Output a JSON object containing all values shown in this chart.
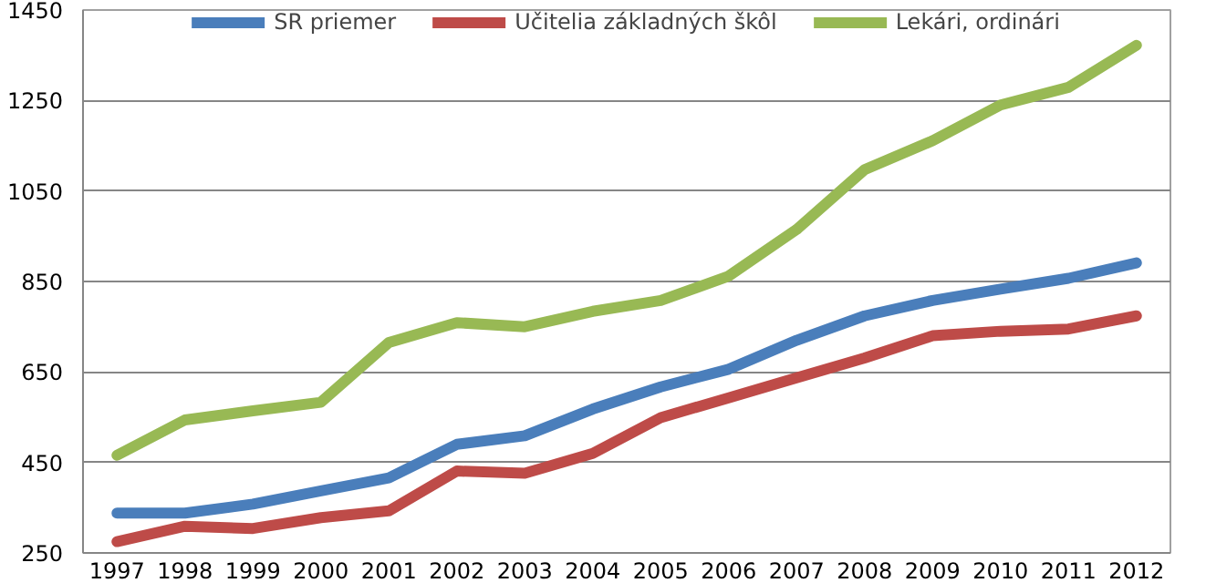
{
  "chart_data": {
    "type": "line",
    "categories": [
      "1997",
      "1998",
      "1999",
      "2000",
      "2001",
      "2002",
      "2003",
      "2004",
      "2005",
      "2006",
      "2007",
      "2008",
      "2009",
      "2010",
      "2011",
      "2012"
    ],
    "series": [
      {
        "name": "SR priemer",
        "color": "#4a7ebb",
        "values": [
          338,
          338,
          358,
          387,
          416,
          490,
          509,
          568,
          617,
          656,
          720,
          774,
          808,
          833,
          857,
          891
        ]
      },
      {
        "name": "Učitelia základných škôl",
        "color": "#be4b48",
        "values": [
          275,
          309,
          304,
          328,
          343,
          431,
          426,
          470,
          549,
          593,
          637,
          681,
          730,
          740,
          745,
          774
        ]
      },
      {
        "name": "Lekári, ordinári",
        "color": "#98b954",
        "values": [
          466,
          544,
          564,
          583,
          715,
          759,
          750,
          784,
          808,
          862,
          965,
          1097,
          1161,
          1240,
          1279,
          1372
        ]
      }
    ],
    "ylim": [
      250,
      1450
    ],
    "yticks": [
      250,
      450,
      650,
      850,
      1050,
      1250,
      1450
    ],
    "grid": "y",
    "legend": "top",
    "marker": "none",
    "line_style": "solid"
  }
}
